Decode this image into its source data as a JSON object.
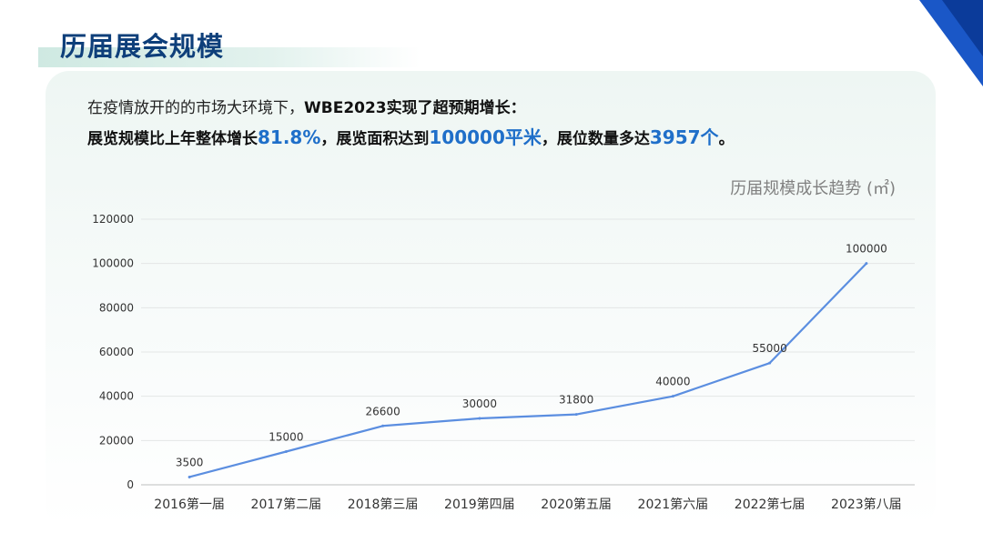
{
  "page_title": "历届展会规模",
  "intro": {
    "line1_prefix": "在疫情放开的的市场大环境下，",
    "line1_bold": "WBE2023实现了超预期增长：",
    "line2_part1": "展览规模比上年整体增长",
    "line2_value1": "81.8%",
    "line2_part2": "，展览面积达到",
    "line2_value2": "100000平米",
    "line2_part3": "，展位数量多达",
    "line2_value3": "3957个",
    "line2_part4": "。"
  },
  "colors": {
    "title": "#0e3f7a",
    "highlight": "#1f6fc9",
    "line": "#5b8ee0",
    "corner": "#1a57c7"
  },
  "chart_data": {
    "type": "line",
    "title": "历届规模成长趋势 (㎡)",
    "categories": [
      "2016第一届",
      "2017第二届",
      "2018第三届",
      "2019第四届",
      "2020第五届",
      "2021第六届",
      "2022第七届",
      "2023第八届"
    ],
    "values": [
      3500,
      15000,
      26600,
      30000,
      31800,
      40000,
      55000,
      100000
    ],
    "data_labels": [
      "3500",
      "15000",
      "26600",
      "30000",
      "31800",
      "40000",
      "55000",
      "100000"
    ],
    "yticks": [
      "0",
      "20000",
      "40000",
      "60000",
      "80000",
      "100000",
      "120000"
    ],
    "ylim": [
      0,
      120000
    ],
    "grid": true,
    "legend": "none"
  }
}
